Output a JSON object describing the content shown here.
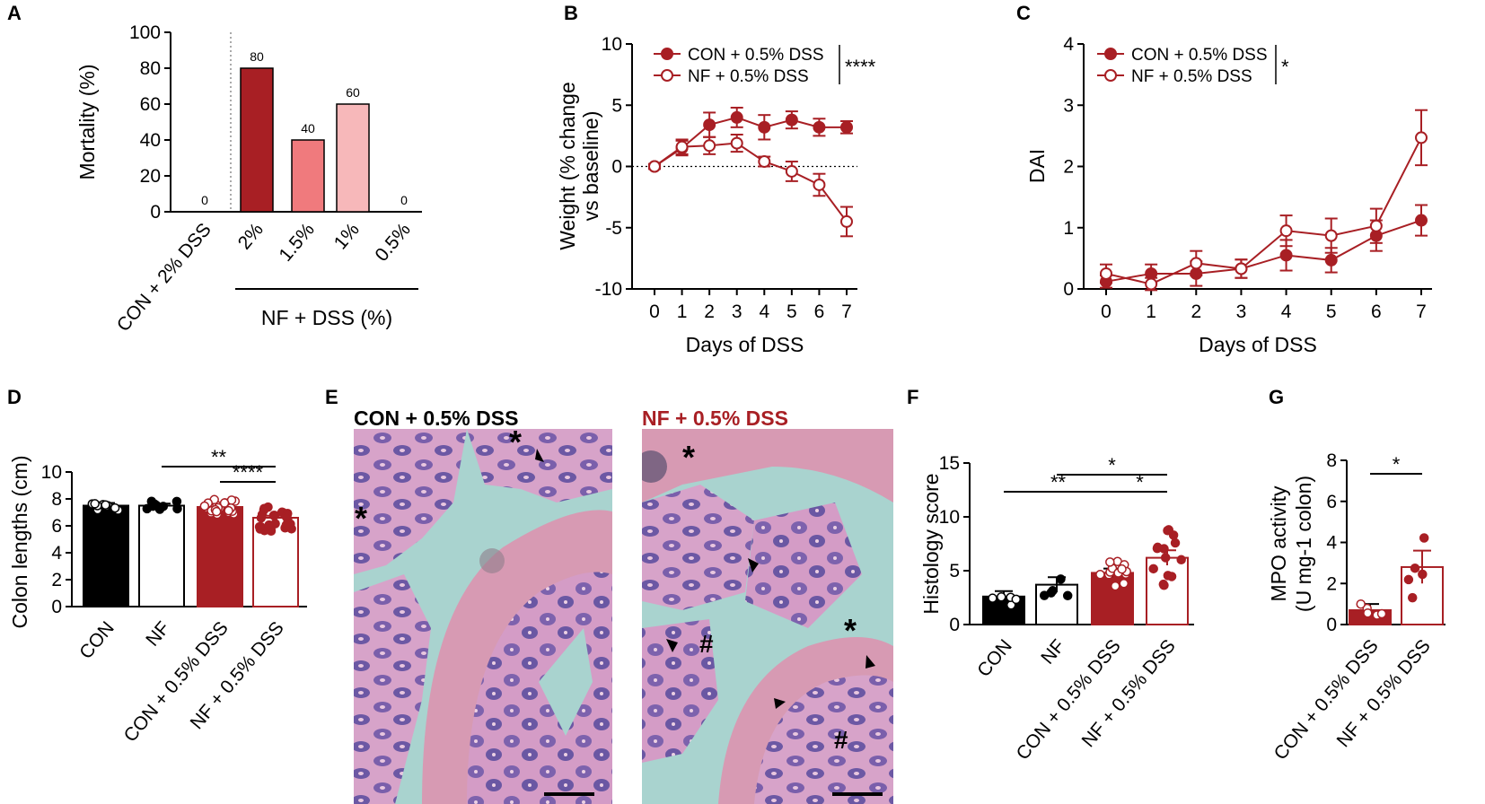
{
  "colors": {
    "dark_red": "#a81f24",
    "mid_red": "#f07a7d",
    "light_red": "#f7b8ba",
    "black": "#000000",
    "white": "#ffffff",
    "he_pink": "#d9a2c6",
    "he_purple": "#6f5aa6",
    "he_bg": "#a9d3cf"
  },
  "panels": {
    "A": {
      "label": "A"
    },
    "B": {
      "label": "B"
    },
    "C": {
      "label": "C"
    },
    "D": {
      "label": "D"
    },
    "E": {
      "label": "E"
    },
    "F": {
      "label": "F"
    },
    "G": {
      "label": "G"
    }
  },
  "histology": {
    "left_title": "CON + 0.5% DSS",
    "right_title": "NF + 0.5% DSS",
    "marks": {
      "asterisk": "*",
      "hash": "#"
    }
  },
  "chart_data": [
    {
      "panel": "A",
      "type": "bar",
      "ylabel": "Mortality (%)",
      "ylim": [
        0,
        100
      ],
      "yticks": [
        0,
        20,
        40,
        60,
        80,
        100
      ],
      "categories": [
        "CON + 2% DSS",
        "2%",
        "1.5%",
        "1%",
        "0.5%"
      ],
      "values": [
        0,
        80,
        40,
        60,
        0
      ],
      "data_labels": [
        "0",
        "80",
        "40",
        "60",
        "0"
      ],
      "bar_colors": [
        "#a81f24",
        "#a81f24",
        "#f07a7d",
        "#f7b8ba",
        "#f7b8ba"
      ],
      "group_label": "NF +  DSS (%)"
    },
    {
      "panel": "B",
      "type": "line",
      "xlabel": "Days of DSS",
      "ylabel_lines": [
        "Weight (% change",
        "vs baseline)"
      ],
      "ylim": [
        -10,
        10
      ],
      "yticks": [
        -10,
        -5,
        0,
        5,
        10
      ],
      "x": [
        0,
        1,
        2,
        3,
        4,
        5,
        6,
        7
      ],
      "series": [
        {
          "name": "CON + 0.5% DSS",
          "filled": true,
          "values": [
            0,
            1.5,
            3.4,
            4.0,
            3.2,
            3.8,
            3.2,
            3.2
          ],
          "errors": [
            0.2,
            0.6,
            1.0,
            0.8,
            1.0,
            0.7,
            0.7,
            0.5
          ]
        },
        {
          "name": "NF + 0.5% DSS",
          "filled": false,
          "values": [
            0,
            1.6,
            1.7,
            1.9,
            0.4,
            -0.4,
            -1.5,
            -4.5
          ],
          "errors": [
            0.2,
            0.6,
            0.7,
            0.7,
            0.4,
            0.8,
            0.9,
            1.2
          ]
        }
      ],
      "significance": "****"
    },
    {
      "panel": "C",
      "type": "line",
      "xlabel": "Days of DSS",
      "ylabel": "DAI",
      "ylim": [
        0,
        4
      ],
      "yticks": [
        0,
        1,
        2,
        3,
        4
      ],
      "x": [
        0,
        1,
        2,
        3,
        4,
        5,
        6,
        7
      ],
      "series": [
        {
          "name": "CON + 0.5% DSS",
          "filled": true,
          "values": [
            0.12,
            0.25,
            0.25,
            0.33,
            0.55,
            0.47,
            0.87,
            1.12
          ],
          "errors": [
            0.1,
            0.15,
            0.2,
            0.15,
            0.25,
            0.2,
            0.25,
            0.25
          ]
        },
        {
          "name": "NF + 0.5% DSS",
          "filled": false,
          "values": [
            0.25,
            0.08,
            0.42,
            0.33,
            0.95,
            0.87,
            1.03,
            2.47
          ],
          "errors": [
            0.15,
            0.1,
            0.2,
            0.15,
            0.25,
            0.28,
            0.28,
            0.45
          ]
        }
      ],
      "significance": "*"
    },
    {
      "panel": "D",
      "type": "bar",
      "ylabel": "Colon lengths (cm)",
      "ylim": [
        0,
        10
      ],
      "yticks": [
        0,
        2,
        4,
        6,
        8,
        10
      ],
      "categories": [
        "CON",
        "NF",
        "CON + 0.5% DSS",
        "NF + 0.5% DSS"
      ],
      "values": [
        7.5,
        7.5,
        7.4,
        6.6
      ],
      "errors": [
        0.2,
        0.15,
        0.15,
        0.15
      ],
      "fill": [
        "#000000",
        "#ffffff",
        "#a81f24",
        "#ffffff"
      ],
      "edge": [
        "#000000",
        "#000000",
        "#a81f24",
        "#a81f24"
      ],
      "significance": [
        {
          "from": 1,
          "to": 3,
          "label": "**"
        },
        {
          "from": 2,
          "to": 3,
          "label": "****"
        }
      ]
    },
    {
      "panel": "F",
      "type": "bar",
      "ylabel": "Histology score",
      "ylim": [
        0,
        15
      ],
      "yticks": [
        0,
        5,
        10,
        15
      ],
      "categories": [
        "CON",
        "NF",
        "CON + 0.5% DSS",
        "NF + 0.5% DSS"
      ],
      "values": [
        2.6,
        3.7,
        4.8,
        6.2
      ],
      "errors": [
        0.5,
        0.7,
        0.4,
        0.7
      ],
      "fill": [
        "#000000",
        "#ffffff",
        "#a81f24",
        "#ffffff"
      ],
      "edge": [
        "#000000",
        "#000000",
        "#a81f24",
        "#a81f24"
      ],
      "significance": [
        {
          "from": 0,
          "to": 2,
          "label": "**"
        },
        {
          "from": 1,
          "to": 3,
          "label": "*"
        },
        {
          "from": 2,
          "to": 3,
          "label": "*"
        }
      ]
    },
    {
      "panel": "G",
      "type": "bar",
      "ylabel_lines": [
        "MPO activity",
        "(U mg-1 colon)"
      ],
      "ylim": [
        0,
        8
      ],
      "yticks": [
        0,
        2,
        4,
        6,
        8
      ],
      "categories": [
        "CON + 0.5% DSS",
        "NF + 0.5% DSS"
      ],
      "values": [
        0.7,
        2.8
      ],
      "errors": [
        0.3,
        0.8
      ],
      "fill": [
        "#a81f24",
        "#ffffff"
      ],
      "edge": [
        "#a81f24",
        "#a81f24"
      ],
      "significance": [
        {
          "from": 0,
          "to": 1,
          "label": "*"
        }
      ]
    }
  ]
}
